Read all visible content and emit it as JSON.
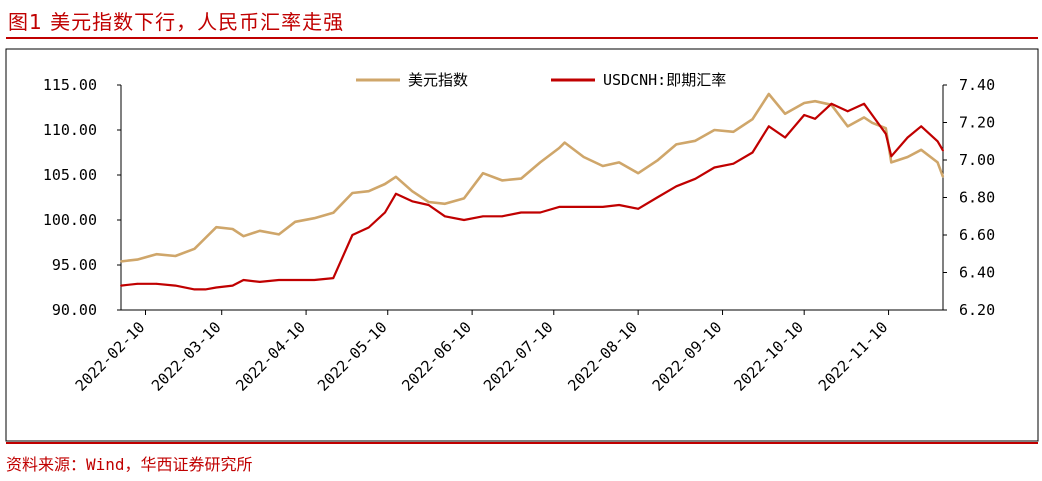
{
  "figure": {
    "title": "图1 美元指数下行，人民币汇率走强",
    "source": "资料来源：Wind，华西证券研究所",
    "accent_color": "#c00000"
  },
  "chart_data": {
    "type": "line",
    "x_type": "date",
    "x_range": [
      "2022-02-01",
      "2022-11-30"
    ],
    "x_tick_labels": [
      "2022-02-10",
      "2022-03-10",
      "2022-04-10",
      "2022-05-10",
      "2022-06-10",
      "2022-07-10",
      "2022-08-10",
      "2022-09-10",
      "2022-10-10",
      "2022-11-10"
    ],
    "y_left": {
      "range": [
        90,
        115
      ],
      "ticks": [
        "90.00",
        "95.00",
        "100.00",
        "105.00",
        "110.00",
        "115.00"
      ]
    },
    "y_right": {
      "range": [
        6.2,
        7.4
      ],
      "ticks": [
        "6.20",
        "6.40",
        "6.60",
        "6.80",
        "7.00",
        "7.20",
        "7.40"
      ]
    },
    "grid": false,
    "legend_position": "top",
    "series": [
      {
        "name": "美元指数",
        "axis": "left",
        "color": "#cfa66a",
        "points": [
          [
            "2022-02-01",
            95.4
          ],
          [
            "2022-02-07",
            95.6
          ],
          [
            "2022-02-14",
            96.2
          ],
          [
            "2022-02-21",
            96.0
          ],
          [
            "2022-02-28",
            96.8
          ],
          [
            "2022-03-04",
            98.0
          ],
          [
            "2022-03-08",
            99.2
          ],
          [
            "2022-03-14",
            99.0
          ],
          [
            "2022-03-18",
            98.2
          ],
          [
            "2022-03-24",
            98.8
          ],
          [
            "2022-03-31",
            98.4
          ],
          [
            "2022-04-06",
            99.8
          ],
          [
            "2022-04-13",
            100.2
          ],
          [
            "2022-04-20",
            100.8
          ],
          [
            "2022-04-27",
            103.0
          ],
          [
            "2022-05-03",
            103.2
          ],
          [
            "2022-05-09",
            104.0
          ],
          [
            "2022-05-13",
            104.8
          ],
          [
            "2022-05-19",
            103.2
          ],
          [
            "2022-05-25",
            102.0
          ],
          [
            "2022-05-31",
            101.8
          ],
          [
            "2022-06-07",
            102.4
          ],
          [
            "2022-06-14",
            105.2
          ],
          [
            "2022-06-21",
            104.4
          ],
          [
            "2022-06-28",
            104.6
          ],
          [
            "2022-07-05",
            106.4
          ],
          [
            "2022-07-12",
            108.0
          ],
          [
            "2022-07-14",
            108.6
          ],
          [
            "2022-07-21",
            107.0
          ],
          [
            "2022-07-28",
            106.0
          ],
          [
            "2022-08-03",
            106.4
          ],
          [
            "2022-08-10",
            105.2
          ],
          [
            "2022-08-17",
            106.6
          ],
          [
            "2022-08-24",
            108.4
          ],
          [
            "2022-08-31",
            108.8
          ],
          [
            "2022-09-07",
            110.0
          ],
          [
            "2022-09-14",
            109.8
          ],
          [
            "2022-09-21",
            111.2
          ],
          [
            "2022-09-27",
            114.0
          ],
          [
            "2022-10-03",
            111.8
          ],
          [
            "2022-10-10",
            113.0
          ],
          [
            "2022-10-14",
            113.2
          ],
          [
            "2022-10-20",
            112.8
          ],
          [
            "2022-10-26",
            110.4
          ],
          [
            "2022-11-01",
            111.4
          ],
          [
            "2022-11-04",
            110.8
          ],
          [
            "2022-11-09",
            110.2
          ],
          [
            "2022-11-11",
            106.4
          ],
          [
            "2022-11-17",
            107.0
          ],
          [
            "2022-11-22",
            107.8
          ],
          [
            "2022-11-28",
            106.4
          ],
          [
            "2022-11-30",
            104.8
          ]
        ]
      },
      {
        "name": "USDCNH:即期汇率",
        "axis": "right",
        "color": "#c00000",
        "points": [
          [
            "2022-02-01",
            6.33
          ],
          [
            "2022-02-07",
            6.34
          ],
          [
            "2022-02-14",
            6.34
          ],
          [
            "2022-02-21",
            6.33
          ],
          [
            "2022-02-28",
            6.31
          ],
          [
            "2022-03-04",
            6.31
          ],
          [
            "2022-03-08",
            6.32
          ],
          [
            "2022-03-14",
            6.33
          ],
          [
            "2022-03-18",
            6.36
          ],
          [
            "2022-03-24",
            6.35
          ],
          [
            "2022-03-31",
            6.36
          ],
          [
            "2022-04-06",
            6.36
          ],
          [
            "2022-04-13",
            6.36
          ],
          [
            "2022-04-20",
            6.37
          ],
          [
            "2022-04-27",
            6.6
          ],
          [
            "2022-05-03",
            6.64
          ],
          [
            "2022-05-09",
            6.72
          ],
          [
            "2022-05-13",
            6.82
          ],
          [
            "2022-05-19",
            6.78
          ],
          [
            "2022-05-25",
            6.76
          ],
          [
            "2022-05-31",
            6.7
          ],
          [
            "2022-06-07",
            6.68
          ],
          [
            "2022-06-14",
            6.7
          ],
          [
            "2022-06-21",
            6.7
          ],
          [
            "2022-06-28",
            6.72
          ],
          [
            "2022-07-05",
            6.72
          ],
          [
            "2022-07-12",
            6.75
          ],
          [
            "2022-07-14",
            6.75
          ],
          [
            "2022-07-21",
            6.75
          ],
          [
            "2022-07-28",
            6.75
          ],
          [
            "2022-08-03",
            6.76
          ],
          [
            "2022-08-10",
            6.74
          ],
          [
            "2022-08-17",
            6.8
          ],
          [
            "2022-08-24",
            6.86
          ],
          [
            "2022-08-31",
            6.9
          ],
          [
            "2022-09-07",
            6.96
          ],
          [
            "2022-09-14",
            6.98
          ],
          [
            "2022-09-21",
            7.04
          ],
          [
            "2022-09-27",
            7.18
          ],
          [
            "2022-10-03",
            7.12
          ],
          [
            "2022-10-10",
            7.24
          ],
          [
            "2022-10-14",
            7.22
          ],
          [
            "2022-10-20",
            7.3
          ],
          [
            "2022-10-26",
            7.26
          ],
          [
            "2022-11-01",
            7.3
          ],
          [
            "2022-11-04",
            7.24
          ],
          [
            "2022-11-09",
            7.14
          ],
          [
            "2022-11-11",
            7.02
          ],
          [
            "2022-11-17",
            7.12
          ],
          [
            "2022-11-22",
            7.18
          ],
          [
            "2022-11-28",
            7.1
          ],
          [
            "2022-11-30",
            7.05
          ]
        ]
      }
    ]
  }
}
